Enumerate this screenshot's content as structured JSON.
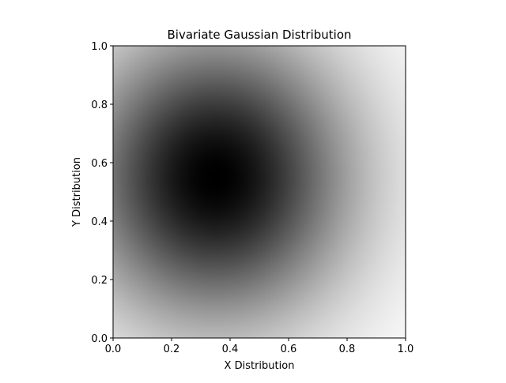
{
  "chart_data": {
    "type": "heatmap",
    "title": "Bivariate Gaussian Distribution",
    "xlabel": "X Distribution",
    "ylabel": "Y Distribution",
    "xlim": [
      0.0,
      1.0
    ],
    "ylim": [
      0.0,
      1.0
    ],
    "xticks": [
      "0.0",
      "0.2",
      "0.4",
      "0.6",
      "0.8",
      "1.0"
    ],
    "yticks": [
      "0.0",
      "0.2",
      "0.4",
      "0.6",
      "0.8",
      "1.0"
    ],
    "grid": false,
    "colormap": "gray_r",
    "distribution": {
      "mean": [
        0.35,
        0.55
      ],
      "std": [
        0.32,
        0.34
      ]
    },
    "colors": {
      "low": "#ffffff",
      "high": "#000000"
    }
  }
}
